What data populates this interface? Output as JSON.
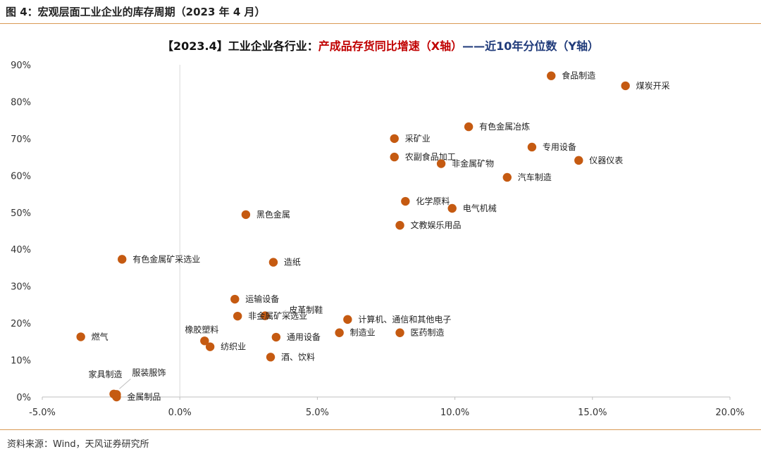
{
  "figure_title": "图 4：宏观层面工业企业的库存周期（2023 年 4 月）",
  "source": "资料来源：Wind，天风证券研究所",
  "chart_data": {
    "type": "scatter",
    "title_parts": [
      "【2023.4】工业企业各行业：",
      "产成品存货同比增速（X轴）",
      "——近10年分位数（Y轴）"
    ],
    "title_colors": [
      "#111111",
      "#c00000",
      "#1f3a7a"
    ],
    "xlabel": "",
    "ylabel": "",
    "xlim": [
      -0.05,
      0.2
    ],
    "ylim": [
      0,
      0.9
    ],
    "x_ticks": [
      -0.05,
      0.0,
      0.05,
      0.1,
      0.15,
      0.2
    ],
    "x_tick_labels": [
      "-5.0%",
      "0.0%",
      "5.0%",
      "10.0%",
      "15.0%",
      "20.0%"
    ],
    "y_ticks": [
      0,
      0.1,
      0.2,
      0.3,
      0.4,
      0.5,
      0.6,
      0.7,
      0.8,
      0.9
    ],
    "y_tick_labels": [
      "0%",
      "10%",
      "20%",
      "30%",
      "40%",
      "50%",
      "60%",
      "70%",
      "80%",
      "90%"
    ],
    "grid": false,
    "marker_color": "#c55a11",
    "points": [
      {
        "label": "食品制造",
        "x": 0.135,
        "y": 0.87,
        "label_pos": "right"
      },
      {
        "label": "煤炭开采",
        "x": 0.162,
        "y": 0.843,
        "label_pos": "right"
      },
      {
        "label": "有色金属冶炼",
        "x": 0.105,
        "y": 0.732,
        "label_pos": "right"
      },
      {
        "label": "采矿业",
        "x": 0.078,
        "y": 0.7,
        "label_pos": "right"
      },
      {
        "label": "专用设备",
        "x": 0.128,
        "y": 0.677,
        "label_pos": "right"
      },
      {
        "label": "农副食品加工",
        "x": 0.078,
        "y": 0.65,
        "label_pos": "right"
      },
      {
        "label": "非金属矿物",
        "x": 0.095,
        "y": 0.632,
        "label_pos": "right"
      },
      {
        "label": "仪器仪表",
        "x": 0.145,
        "y": 0.641,
        "label_pos": "right"
      },
      {
        "label": "汽车制造",
        "x": 0.119,
        "y": 0.595,
        "label_pos": "right"
      },
      {
        "label": "化学原料",
        "x": 0.082,
        "y": 0.53,
        "label_pos": "right"
      },
      {
        "label": "电气机械",
        "x": 0.099,
        "y": 0.511,
        "label_pos": "right"
      },
      {
        "label": "黑色金属",
        "x": 0.024,
        "y": 0.494,
        "label_pos": "right"
      },
      {
        "label": "文教娱乐用品",
        "x": 0.08,
        "y": 0.465,
        "label_pos": "right"
      },
      {
        "label": "有色金属矿采选业",
        "x": -0.021,
        "y": 0.373,
        "label_pos": "right"
      },
      {
        "label": "造纸",
        "x": 0.034,
        "y": 0.365,
        "label_pos": "right"
      },
      {
        "label": "运输设备",
        "x": 0.02,
        "y": 0.265,
        "label_pos": "right"
      },
      {
        "label": "皮革制鞋",
        "x": 0.031,
        "y": 0.22,
        "label_pos": "upper-right-leader"
      },
      {
        "label": "非金属矿采选业",
        "x": 0.021,
        "y": 0.219,
        "label_pos": "right"
      },
      {
        "label": "计算机、通信和其他电子",
        "x": 0.061,
        "y": 0.21,
        "label_pos": "right"
      },
      {
        "label": "燃气",
        "x": -0.036,
        "y": 0.163,
        "label_pos": "right"
      },
      {
        "label": "制造业",
        "x": 0.058,
        "y": 0.174,
        "label_pos": "right"
      },
      {
        "label": "医药制造",
        "x": 0.08,
        "y": 0.174,
        "label_pos": "right"
      },
      {
        "label": "通用设备",
        "x": 0.035,
        "y": 0.162,
        "label_pos": "right"
      },
      {
        "label": "橡胶塑料",
        "x": 0.009,
        "y": 0.152,
        "label_pos": "above-left"
      },
      {
        "label": "纺织业",
        "x": 0.011,
        "y": 0.136,
        "label_pos": "right"
      },
      {
        "label": "酒、饮料",
        "x": 0.033,
        "y": 0.108,
        "label_pos": "right"
      },
      {
        "label": "家具制造",
        "x": -0.024,
        "y": 0.008,
        "label_pos": "above-left"
      },
      {
        "label": "服装服饰",
        "x": -0.023,
        "y": 0.007,
        "label_pos": "upper-right-leader"
      },
      {
        "label": "金属制品",
        "x": -0.023,
        "y": 0.0,
        "label_pos": "right"
      }
    ]
  }
}
